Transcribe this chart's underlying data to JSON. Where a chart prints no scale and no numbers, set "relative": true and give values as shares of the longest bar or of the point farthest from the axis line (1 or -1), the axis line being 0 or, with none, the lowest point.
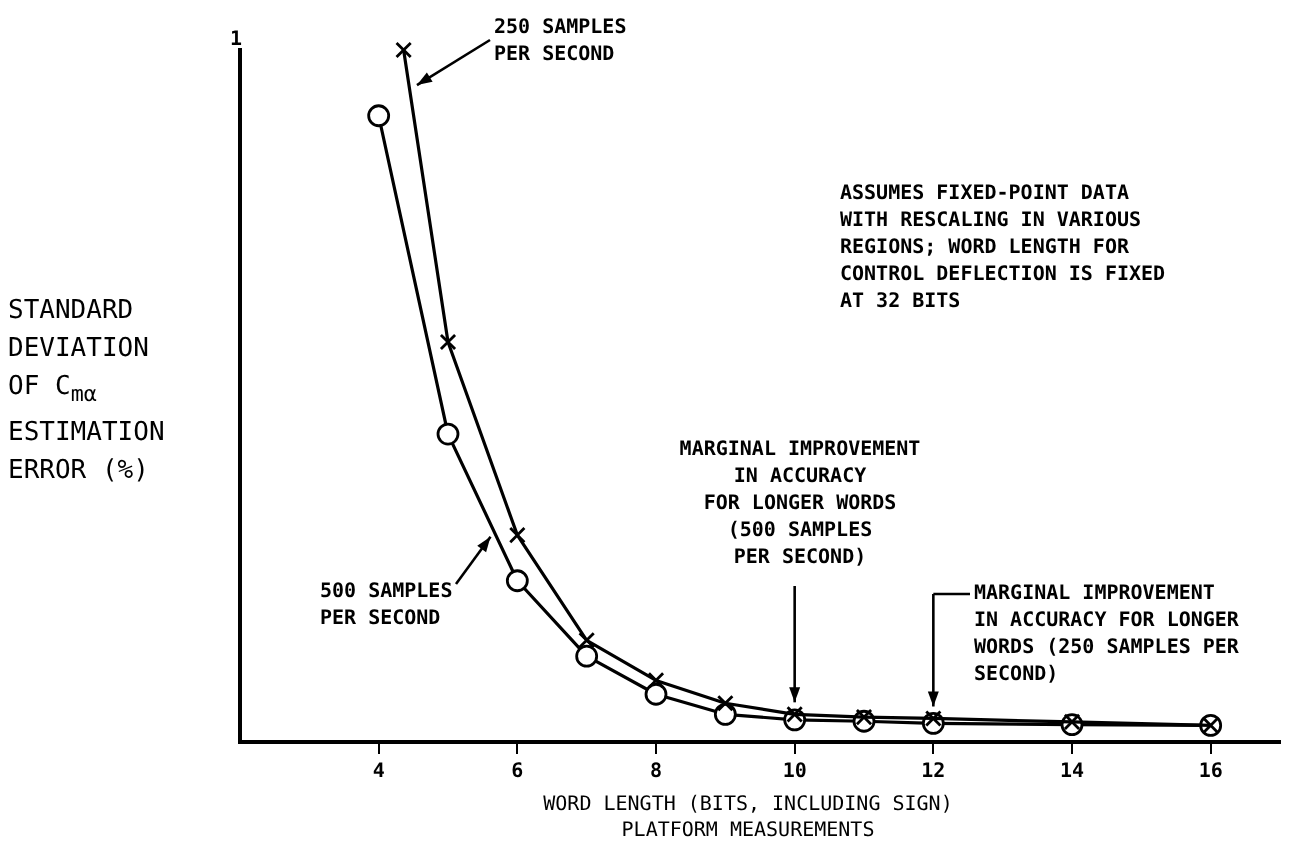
{
  "chart_data": {
    "type": "line",
    "relative": true,
    "xlabel": "WORD LENGTH (BITS, INCLUDING SIGN)\nPLATFORM MEASUREMENTS",
    "ylabel": "STANDARD\nDEVIATION\nOF C$_{mα}$\nESTIMATION\nERROR (%)",
    "xlim": [
      2,
      17
    ],
    "xticks": [
      4,
      6,
      8,
      10,
      12,
      14,
      16
    ],
    "grid": false,
    "legend": false,
    "line_style": "solid",
    "series": [
      {
        "name": "250 SAMPLES PER SECOND",
        "color": "#000000",
        "marker": "cross",
        "x": [
          4.36,
          5,
          6,
          7,
          8,
          9,
          10,
          11,
          12,
          14,
          16
        ],
        "values": [
          1.0,
          0.578,
          0.299,
          0.147,
          0.089,
          0.056,
          0.04,
          0.036,
          0.034,
          0.029,
          0.024
        ]
      },
      {
        "name": "500 SAMPLES PER SECOND",
        "color": "#000000",
        "marker": "circle",
        "x": [
          4.0,
          5,
          6,
          7,
          8,
          9,
          10,
          11,
          12,
          14,
          16
        ],
        "values": [
          0.905,
          0.445,
          0.233,
          0.124,
          0.069,
          0.04,
          0.032,
          0.03,
          0.027,
          0.025,
          0.024
        ]
      }
    ],
    "annotations": [
      "1",
      {
        "text": "MARGINAL IMPROVEMENT\nIN ACCURACY\nFOR LONGER WORDS\n(500 SAMPLES\nPER SECOND)",
        "x": 10,
        "y": 0.04
      },
      {
        "text": "MARGINAL IMPROVEMENT\nIN ACCURACY FOR LONGER\nWORDS (250 SAMPLES PER\nSECOND)",
        "x": 12,
        "y": 0.034
      },
      "ASSUMES FIXED-POINT DATA\nWITH RESCALING IN VARIOUS\nREGIONS; WORD LENGTH FOR\nCONTROL DEFLECTION IS FIXED\nAT 32 BITS"
    ]
  }
}
